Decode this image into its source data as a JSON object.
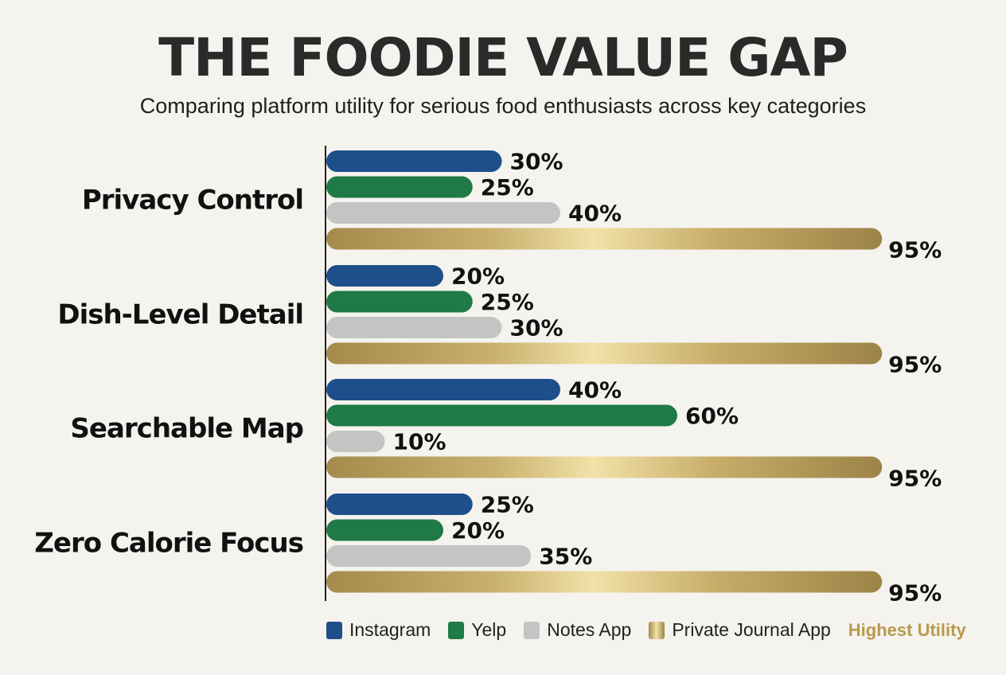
{
  "title": "THE FOODIE VALUE GAP",
  "subtitle": "Comparing platform utility for serious food enthusiasts across key categories",
  "legend_note": "Highest Utility",
  "colors": {
    "Instagram": "#1e4f8a",
    "Yelp": "#1f7a45",
    "Notes App": "#c4c4c4",
    "Private Journal App": "gold-gradient"
  },
  "chart_data": {
    "type": "bar",
    "orientation": "horizontal",
    "categories": [
      "Privacy Control",
      "Dish-Level Detail",
      "Searchable Map",
      "Zero Calorie Focus"
    ],
    "series": [
      {
        "name": "Instagram",
        "values": [
          30,
          20,
          40,
          25
        ]
      },
      {
        "name": "Yelp",
        "values": [
          25,
          25,
          60,
          20
        ]
      },
      {
        "name": "Notes App",
        "values": [
          40,
          30,
          10,
          35
        ]
      },
      {
        "name": "Private Journal App",
        "values": [
          95,
          95,
          95,
          95
        ]
      }
    ],
    "value_suffix": "%",
    "xlim": [
      0,
      100
    ],
    "grid": false,
    "legend_position": "bottom"
  }
}
